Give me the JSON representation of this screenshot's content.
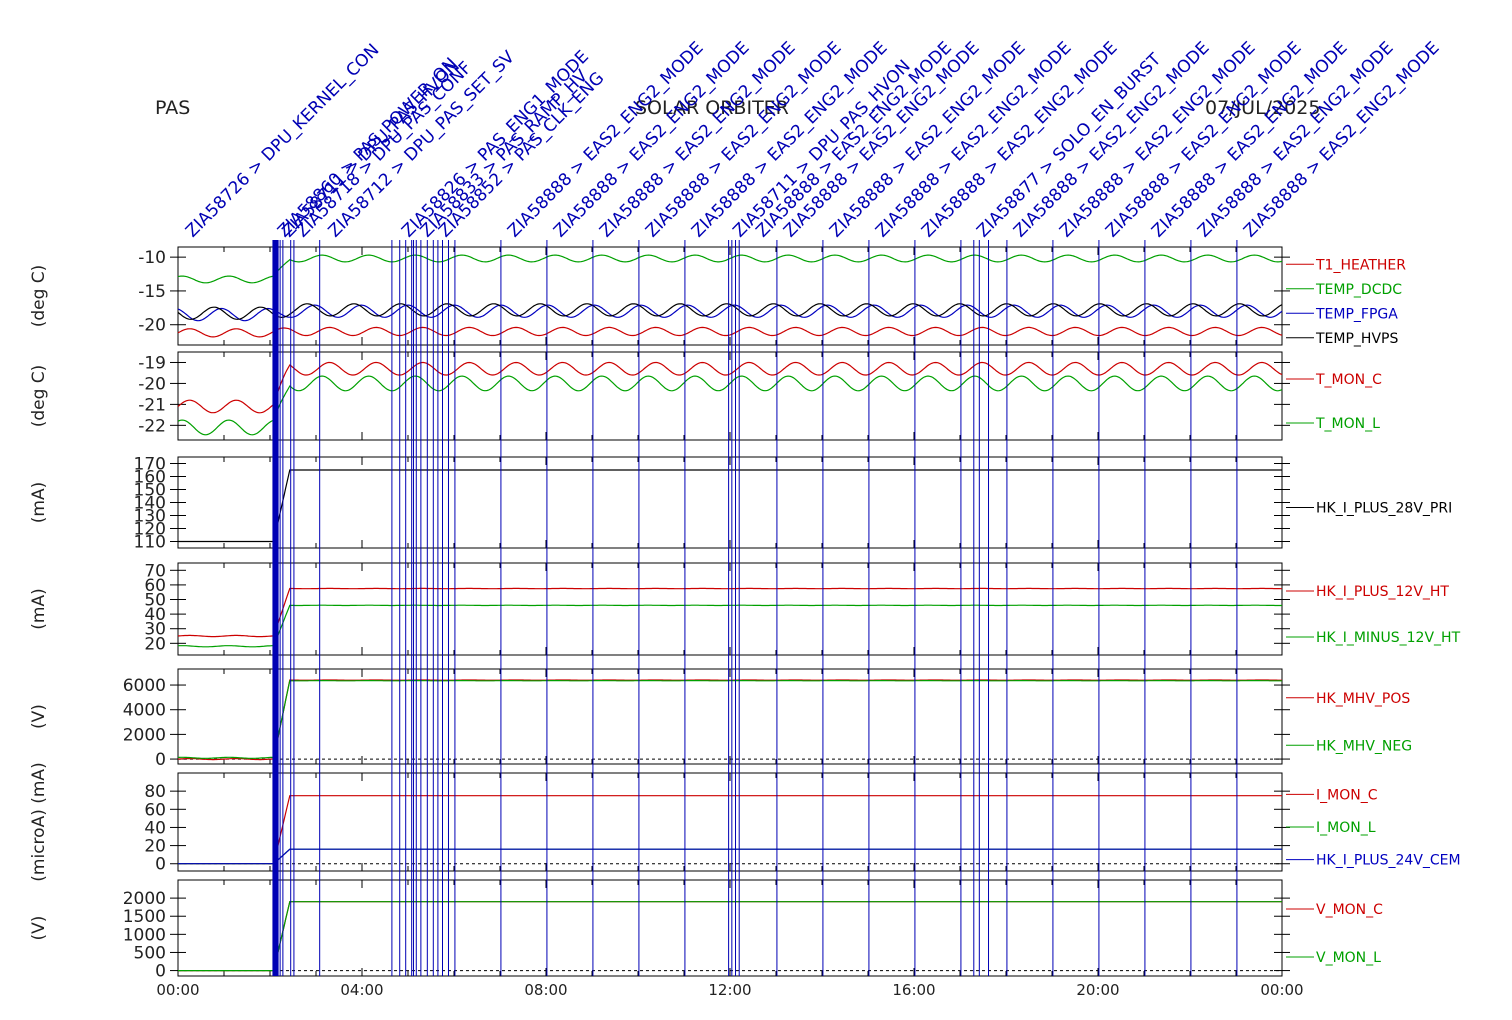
{
  "header": {
    "instrument": "PAS",
    "mission": "SOLAR ORBITER",
    "date": "07/JUL/2025"
  },
  "colors": {
    "red": "#cc0000",
    "green": "#00a000",
    "blue": "#0000c0",
    "black": "#000000",
    "event": "#0000b4"
  },
  "x_axis": {
    "ticks": [
      "00:00",
      "04:00",
      "08:00",
      "12:00",
      "16:00",
      "20:00",
      "00:00"
    ],
    "range_hours": [
      0,
      24
    ]
  },
  "events": {
    "times_h": [
      2.08,
      2.12,
      2.16,
      2.22,
      2.28,
      2.45,
      2.52,
      3.08,
      4.65,
      4.82,
      4.95,
      5.08,
      5.12,
      5.18,
      5.28,
      5.42,
      5.55,
      5.65,
      5.75,
      5.88,
      6.02,
      7.02,
      8.02,
      9.02,
      10.02,
      11.02,
      11.97,
      12.04,
      12.12,
      12.2,
      13.02,
      14.02,
      15.02,
      16.02,
      17.02,
      17.3,
      17.42,
      17.62,
      18.02,
      19.02,
      20.02,
      21.02,
      22.02,
      23.02
    ],
    "label_rows": [
      {
        "t": 0.1,
        "text": "ZIA58726 > DPU_KERNEL_CON"
      },
      {
        "t": 2.1,
        "text": "ZIA58860 > PAS_POWER_ON"
      },
      {
        "t": 2.2,
        "text": "ZIA58711 > DPU_PAS_HVON"
      },
      {
        "t": 2.5,
        "text": "ZIA58718 > DPU_PAS_CONF"
      },
      {
        "t": 3.2,
        "text": "ZIA58712 > DPU_PAS_SET_SV"
      },
      {
        "t": 4.8,
        "text": "ZIA58826 > PAS_ENG1_MODE"
      },
      {
        "t": 5.2,
        "text": "ZIA58833 > PAS_RAMP_HV"
      },
      {
        "t": 5.6,
        "text": "ZIA58852 > PAS_CLK_ENG"
      },
      {
        "t": 7.1,
        "text": "ZIA58888 > EAS2_ENG2_MODE"
      },
      {
        "t": 8.1,
        "text": "ZIA58888 > EAS2_ENG2_MODE"
      },
      {
        "t": 9.1,
        "text": "ZIA58888 > EAS2_ENG2_MODE"
      },
      {
        "t": 10.1,
        "text": "ZIA58888 > EAS2_ENG2_MODE"
      },
      {
        "t": 11.1,
        "text": "ZIA58888 > EAS2_ENG2_MODE"
      },
      {
        "t": 12.0,
        "text": "ZIA58711 > DPU_PAS_HVON"
      },
      {
        "t": 12.5,
        "text": "ZIA58888 > EAS2_ENG2_MODE"
      },
      {
        "t": 13.1,
        "text": "ZIA58888 > EAS2_ENG2_MODE"
      },
      {
        "t": 14.1,
        "text": "ZIA58888 > EAS2_ENG2_MODE"
      },
      {
        "t": 15.1,
        "text": "ZIA58888 > EAS2_ENG2_MODE"
      },
      {
        "t": 16.1,
        "text": "ZIA58888 > EAS2_ENG2_MODE"
      },
      {
        "t": 17.3,
        "text": "ZIA58877 > SOLO_EN_BURST"
      },
      {
        "t": 18.1,
        "text": "ZIA58888 > EAS2_ENG2_MODE"
      },
      {
        "t": 19.1,
        "text": "ZIA58888 > EAS2_ENG2_MODE"
      },
      {
        "t": 20.1,
        "text": "ZIA58888 > EAS2_ENG2_MODE"
      },
      {
        "t": 21.1,
        "text": "ZIA58888 > EAS2_ENG2_MODE"
      },
      {
        "t": 22.1,
        "text": "ZIA58888 > EAS2_ENG2_MODE"
      },
      {
        "t": 23.1,
        "text": "ZIA58888 > EAS2_ENG2_MODE"
      }
    ]
  },
  "chart_data": [
    {
      "type": "line",
      "ylabel": "(deg C)",
      "yticks": [
        "-10",
        "-15",
        "-20"
      ],
      "ylim": [
        -23,
        -8.5
      ],
      "series": [
        {
          "name": "T1_HEATHER",
          "color": "red",
          "before": -21.2,
          "after": -21.0,
          "amp": 0.6
        },
        {
          "name": "TEMP_DCDC",
          "color": "green",
          "before": -13.3,
          "after": -10.2,
          "amp": 0.5
        },
        {
          "name": "TEMP_FPGA",
          "color": "blue",
          "before": -18.5,
          "after": -18.0,
          "amp": 0.9
        },
        {
          "name": "TEMP_HVPS",
          "color": "black",
          "before": -18.3,
          "after": -17.8,
          "amp": 0.9
        }
      ]
    },
    {
      "type": "line",
      "ylabel": "(deg C)",
      "yticks": [
        "-19",
        "-20",
        "-21",
        "-22"
      ],
      "ylim": [
        -22.7,
        -18.5
      ],
      "series": [
        {
          "name": "T_MON_C",
          "color": "red",
          "before": -21.1,
          "after": -19.3,
          "amp": 0.3
        },
        {
          "name": "T_MON_L",
          "color": "green",
          "before": -22.1,
          "after": -20.0,
          "amp": 0.35
        }
      ]
    },
    {
      "type": "line",
      "ylabel": "(mA)",
      "yticks": [
        "170",
        "160",
        "150",
        "140",
        "130",
        "120",
        "110"
      ],
      "ylim": [
        105,
        175
      ],
      "series": [
        {
          "name": "HK_I_PLUS_28V_PRI",
          "color": "black",
          "before": 110,
          "after": 165,
          "amp": 0
        }
      ]
    },
    {
      "type": "line",
      "ylabel": "(mA)",
      "yticks": [
        "70",
        "60",
        "50",
        "40",
        "30",
        "20"
      ],
      "ylim": [
        12,
        75
      ],
      "series": [
        {
          "name": "HK_I_PLUS_12V_HT",
          "color": "red",
          "before": 25,
          "after": 57.5,
          "amp": 0.4
        },
        {
          "name": "HK_I_MINUS_12V_HT",
          "color": "green",
          "before": 18,
          "after": 46,
          "amp": 0.4
        }
      ]
    },
    {
      "type": "line",
      "ylabel": "(V)",
      "yticks": [
        "6000",
        "4000",
        "2000",
        "0"
      ],
      "ylim": [
        -400,
        7300
      ],
      "series": [
        {
          "name": "HK_MHV_POS",
          "color": "red",
          "before": 0,
          "after": 6400,
          "amp": 40
        },
        {
          "name": "HK_MHV_NEG",
          "color": "green",
          "before": 100,
          "after": 6350,
          "amp": 40
        }
      ]
    },
    {
      "type": "line",
      "ylabel": "(microA) (mA)",
      "yticks": [
        "80",
        "60",
        "40",
        "20",
        "0"
      ],
      "ylim": [
        -8,
        100
      ],
      "series": [
        {
          "name": "I_MON_C",
          "color": "red",
          "before": 0,
          "after": 75,
          "amp": 0
        },
        {
          "name": "I_MON_L",
          "color": "green",
          "before": 0,
          "after": 16,
          "amp": 0
        },
        {
          "name": "HK_I_PLUS_24V_CEM",
          "color": "blue",
          "before": 0,
          "after": 16,
          "amp": 0
        }
      ]
    },
    {
      "type": "line",
      "ylabel": "(V)",
      "yticks": [
        "2000",
        "1500",
        "1000",
        "500",
        "0"
      ],
      "ylim": [
        -150,
        2500
      ],
      "series": [
        {
          "name": "V_MON_C",
          "color": "red",
          "before": 0,
          "after": 1900,
          "amp": 0
        },
        {
          "name": "V_MON_L",
          "color": "green",
          "before": 0,
          "after": 1900,
          "amp": 0
        }
      ]
    }
  ]
}
